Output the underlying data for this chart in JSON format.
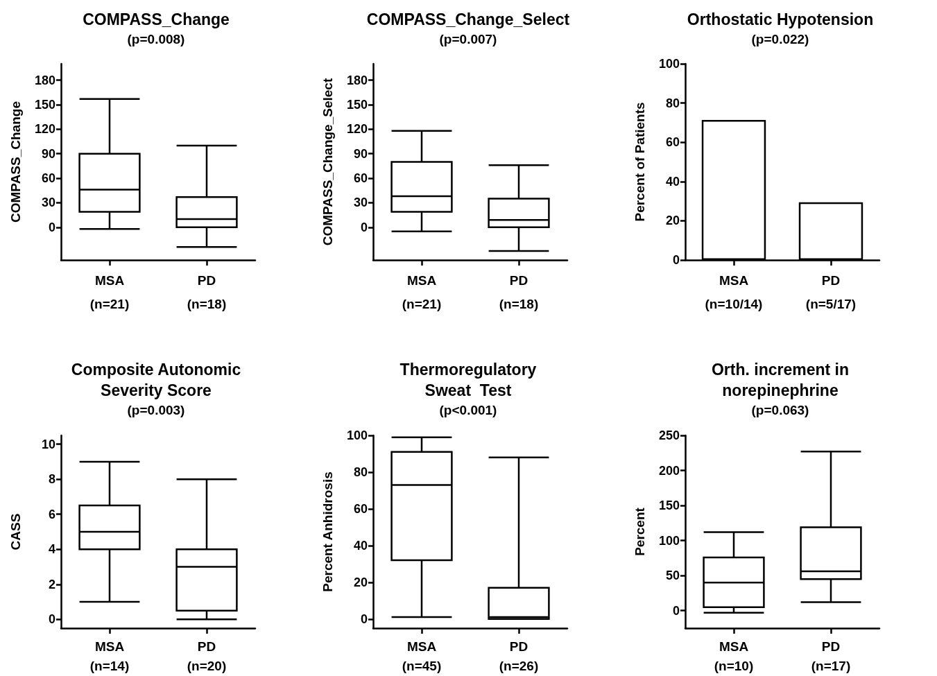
{
  "chart_data": [
    {
      "type": "box",
      "title": "COMPASS_Change",
      "subtitle": "(p=0.008)",
      "ylabel": "COMPASS_Change",
      "categories": [
        "MSA\n(n=21)",
        "PD\n(n=18)"
      ],
      "color": "#000000",
      "ylim": [
        -40,
        200
      ],
      "yticks": [
        0,
        30,
        60,
        90,
        120,
        150,
        180
      ],
      "boxes": [
        {
          "low": -2,
          "q1": 19,
          "median": 46,
          "q3": 90,
          "high": 157
        },
        {
          "low": -24,
          "q1": 0,
          "median": 10,
          "q3": 37,
          "high": 100
        }
      ]
    },
    {
      "type": "box",
      "title": "COMPASS_Change_Select",
      "subtitle": "(p=0.007)",
      "ylabel": "COMPASS_Change_Select",
      "categories": [
        "MSA\n(n=21)",
        "PD\n(n=18)"
      ],
      "color": "#000000",
      "ylim": [
        -40,
        200
      ],
      "yticks": [
        0,
        30,
        60,
        90,
        120,
        150,
        180
      ],
      "boxes": [
        {
          "low": -5,
          "q1": 19,
          "median": 38,
          "q3": 80,
          "high": 118
        },
        {
          "low": -29,
          "q1": 0,
          "median": 9,
          "q3": 35,
          "high": 76
        }
      ]
    },
    {
      "type": "bar",
      "title": "Orthostatic Hypotension",
      "subtitle": "(p=0.022)",
      "ylabel": "Percent of Patients",
      "categories": [
        "MSA\n(n=10/14)",
        "PD\n(n=5/17)"
      ],
      "color": "#000000",
      "ylim": [
        0,
        100
      ],
      "yticks": [
        0,
        20,
        40,
        60,
        80,
        100
      ],
      "values": [
        71.4,
        29.4
      ]
    },
    {
      "type": "box",
      "title": "Composite Autonomic\nSeverity Score",
      "subtitle": "(p=0.003)",
      "ylabel": "CASS",
      "categories": [
        "MSA\n(n=14)",
        "PD\n(n=20)"
      ],
      "color": "#000000",
      "ylim": [
        -0.5,
        10.5
      ],
      "yticks": [
        0,
        2,
        4,
        6,
        8,
        10
      ],
      "boxes": [
        {
          "low": 1,
          "q1": 4,
          "median": 5,
          "q3": 6.5,
          "high": 9
        },
        {
          "low": 0,
          "q1": 0.5,
          "median": 3,
          "q3": 4,
          "high": 8
        }
      ]
    },
    {
      "type": "box",
      "title": "Thermoregulatory\nSweat  Test",
      "subtitle": "(p<0.001)",
      "ylabel": "Percent Anhidrosis",
      "categories": [
        "MSA\n(n=45)",
        "PD\n(n=26)"
      ],
      "color": "#000000",
      "ylim": [
        -5,
        100
      ],
      "yticks": [
        0,
        20,
        40,
        60,
        80,
        100
      ],
      "boxes": [
        {
          "low": 1,
          "q1": 32,
          "median": 73,
          "q3": 91,
          "high": 99
        },
        {
          "low": 0,
          "q1": 0,
          "median": 1,
          "q3": 17,
          "high": 88
        }
      ]
    },
    {
      "type": "box",
      "title": "Orth. increment in\nnorepinephrine",
      "subtitle": "(p=0.063)",
      "ylabel": "Percent",
      "categories": [
        "MSA\n(n=10)",
        "PD\n(n=17)"
      ],
      "color": "#000000",
      "ylim": [
        -25,
        250
      ],
      "yticks": [
        0,
        50,
        100,
        150,
        200,
        250
      ],
      "boxes": [
        {
          "low": -3,
          "q1": 5,
          "median": 40,
          "q3": 76,
          "high": 112
        },
        {
          "low": 12,
          "q1": 45,
          "median": 56,
          "q3": 119,
          "high": 227
        }
      ]
    }
  ]
}
